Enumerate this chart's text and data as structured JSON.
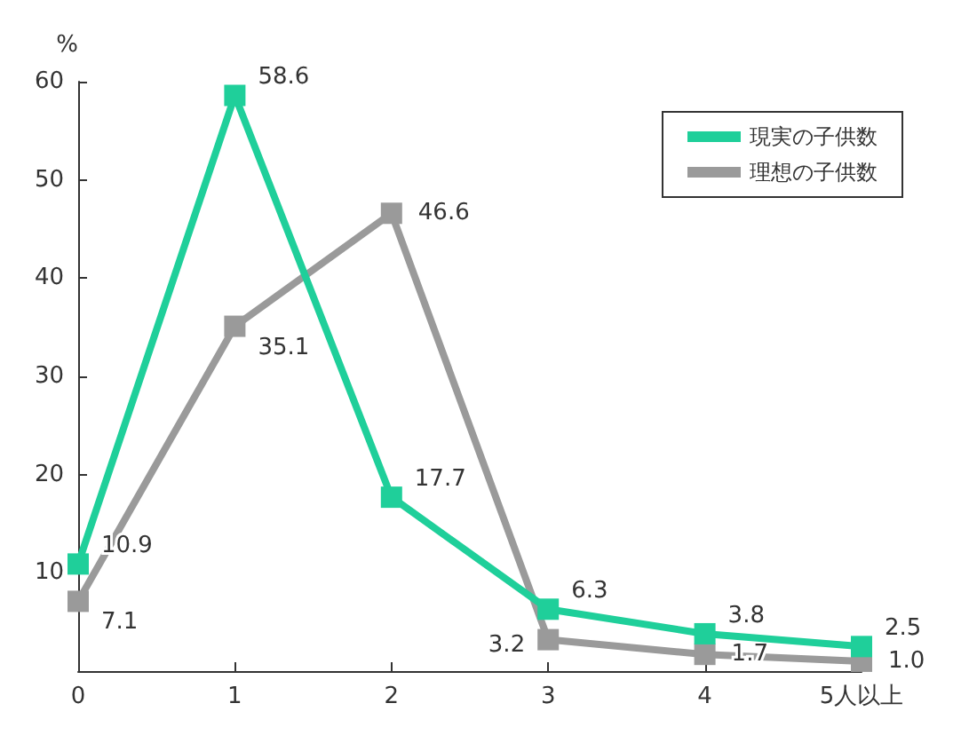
{
  "chart_data": {
    "type": "line",
    "ylabel": "%",
    "categories": [
      "0",
      "1",
      "2",
      "3",
      "4",
      "5人以上"
    ],
    "series": [
      {
        "name": "現実の子供数",
        "color": "#1fcf9a",
        "values": [
          10.9,
          58.6,
          17.7,
          6.3,
          3.8,
          2.5
        ],
        "value_labels": [
          "10.9",
          "58.6",
          "17.7",
          "6.3",
          "3.8",
          "2.5"
        ]
      },
      {
        "name": "理想の子供数",
        "color": "#9a9a9a",
        "values": [
          7.1,
          35.1,
          46.6,
          3.2,
          1.7,
          1.0
        ],
        "value_labels": [
          "7.1",
          "35.1",
          "46.6",
          "3.2",
          "1.7",
          "1.0"
        ]
      }
    ],
    "ylim": [
      0,
      60
    ],
    "yticks": [
      10,
      20,
      30,
      40,
      50,
      60
    ],
    "grid": false,
    "legend": "top right",
    "marker": "square",
    "line_style": "solid"
  }
}
